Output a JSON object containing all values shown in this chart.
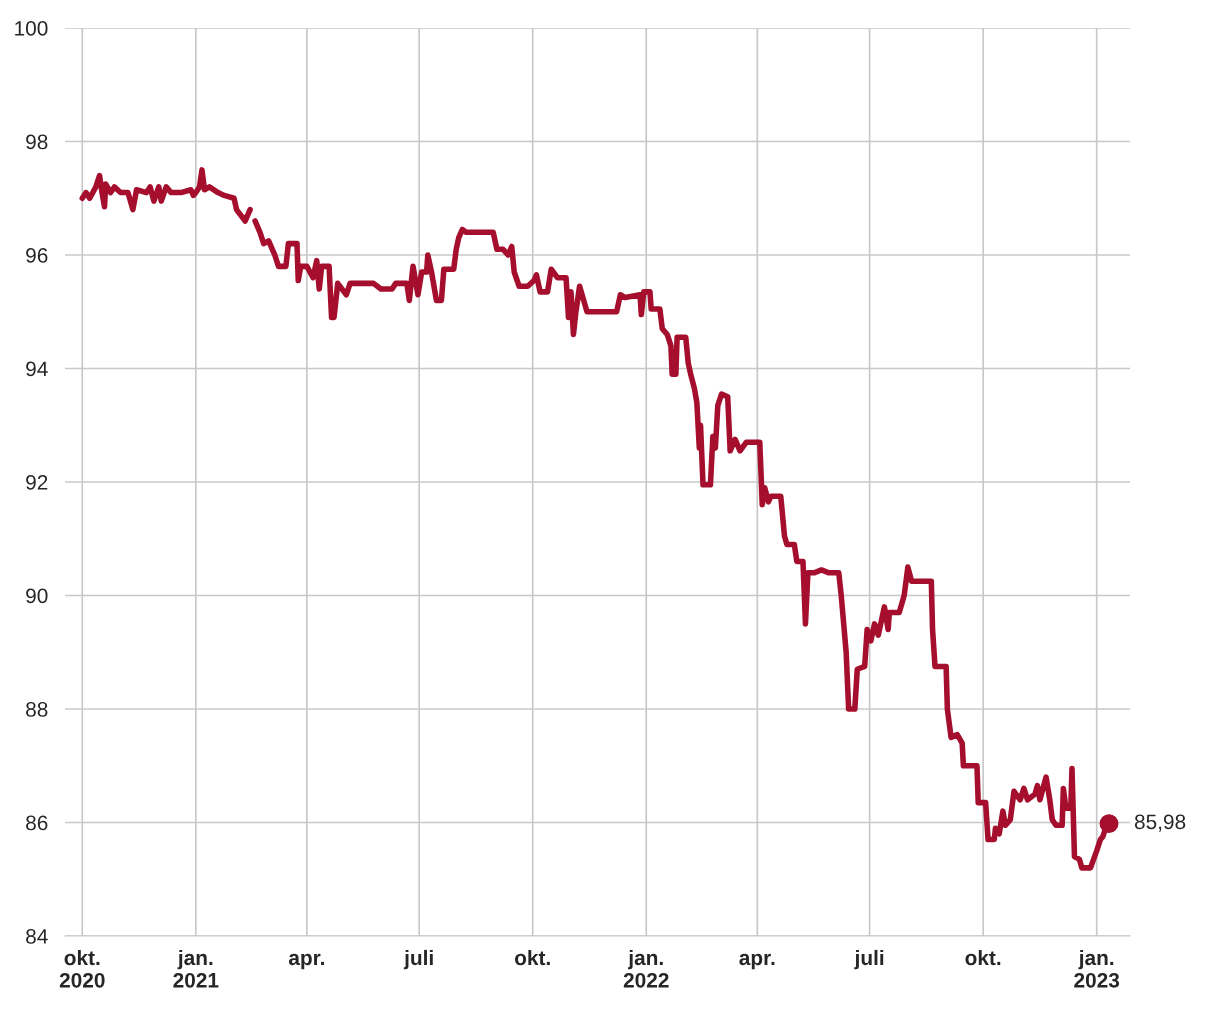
{
  "chart_data": {
    "type": "line",
    "x": [
      "2020-10-01",
      "2020-10-04",
      "2020-10-07",
      "2020-10-12",
      "2020-10-15",
      "2020-10-17",
      "2020-10-19",
      "2020-10-20",
      "2020-10-24",
      "2020-10-27",
      "2020-11-01",
      "2020-11-07",
      "2020-11-11",
      "2020-11-14",
      "2020-11-22",
      "2020-11-25",
      "2020-11-28",
      "2020-12-02",
      "2020-12-04",
      "2020-12-08",
      "2020-12-12",
      "2020-12-20",
      "2020-12-28",
      "2020-12-30",
      "2021-01-01",
      "2021-01-04",
      "2021-01-06",
      "2021-01-08",
      "2021-01-12",
      "2021-01-19",
      "2021-01-24",
      "2021-02-01",
      "2021-02-03",
      "2021-02-10",
      "2021-02-14",
      "2021-02-16",
      "2021-02-18",
      "2021-02-22",
      "2021-02-25",
      "2021-03-01",
      "2021-03-06",
      "2021-03-09",
      "2021-03-15",
      "2021-03-17",
      "2021-03-24",
      "2021-03-25",
      "2021-03-27",
      "2021-04-01",
      "2021-04-06",
      "2021-04-09",
      "2021-04-11",
      "2021-04-13",
      "2021-04-19",
      "2021-04-21",
      "2021-04-23",
      "2021-04-26",
      "2021-05-03",
      "2021-05-06",
      "2021-05-25",
      "2021-05-31",
      "2021-06-09",
      "2021-06-12",
      "2021-06-21",
      "2021-06-23",
      "2021-06-26",
      "2021-06-30",
      "2021-07-03",
      "2021-07-07",
      "2021-07-08",
      "2021-07-11",
      "2021-07-15",
      "2021-07-19",
      "2021-07-21",
      "2021-07-29",
      "2021-07-31",
      "2021-08-02",
      "2021-08-05",
      "2021-08-08",
      "2021-08-30",
      "2021-09-02",
      "2021-09-07",
      "2021-09-11",
      "2021-09-14",
      "2021-09-16",
      "2021-09-20",
      "2021-09-27",
      "2021-10-02",
      "2021-10-04",
      "2021-10-07",
      "2021-10-13",
      "2021-10-16",
      "2021-10-21",
      "2021-10-28",
      "2021-10-30",
      "2021-11-01",
      "2021-11-03",
      "2021-11-05",
      "2021-11-08",
      "2021-11-14",
      "2021-12-08",
      "2021-12-11",
      "2021-12-15",
      "2021-12-27",
      "2021-12-28",
      "2021-12-30",
      "2022-01-04",
      "2022-01-05",
      "2022-01-12",
      "2022-01-14",
      "2022-01-18",
      "2022-01-21",
      "2022-01-22",
      "2022-01-25",
      "2022-01-26",
      "2022-02-02",
      "2022-02-04",
      "2022-02-06",
      "2022-02-09",
      "2022-02-11",
      "2022-02-13",
      "2022-02-14",
      "2022-02-16",
      "2022-02-22",
      "2022-02-24",
      "2022-02-26",
      "2022-02-28",
      "2022-03-03",
      "2022-03-08",
      "2022-03-10",
      "2022-03-14",
      "2022-03-18",
      "2022-03-23",
      "2022-04-03",
      "2022-04-05",
      "2022-04-07",
      "2022-04-10",
      "2022-04-12",
      "2022-04-20",
      "2022-04-23",
      "2022-04-25",
      "2022-05-01",
      "2022-05-03",
      "2022-05-08",
      "2022-05-10",
      "2022-05-12",
      "2022-05-17",
      "2022-05-23",
      "2022-05-29",
      "2022-06-06",
      "2022-06-08",
      "2022-06-12",
      "2022-06-14",
      "2022-06-19",
      "2022-06-21",
      "2022-06-27",
      "2022-06-29",
      "2022-07-02",
      "2022-07-05",
      "2022-07-08",
      "2022-07-11",
      "2022-07-13",
      "2022-07-16",
      "2022-07-17",
      "2022-07-25",
      "2022-07-29",
      "2022-08-01",
      "2022-08-04",
      "2022-08-20",
      "2022-08-21",
      "2022-08-23",
      "2022-09-01",
      "2022-09-02",
      "2022-09-05",
      "2022-09-10",
      "2022-09-14",
      "2022-09-15",
      "2022-09-26",
      "2022-09-27",
      "2022-10-03",
      "2022-10-05",
      "2022-10-10",
      "2022-10-11",
      "2022-10-14",
      "2022-10-17",
      "2022-10-19",
      "2022-10-23",
      "2022-10-26",
      "2022-10-31",
      "2022-11-03",
      "2022-11-06",
      "2022-11-12",
      "2022-11-14",
      "2022-11-16",
      "2022-11-21",
      "2022-11-24",
      "2022-11-26",
      "2022-11-29",
      "2022-12-04",
      "2022-12-05",
      "2022-12-07",
      "2022-12-11",
      "2022-12-12",
      "2022-12-14",
      "2022-12-18",
      "2022-12-20",
      "2022-12-27",
      "2023-01-01",
      "2023-01-04",
      "2023-01-06",
      "2023-01-09",
      "2023-01-11"
    ],
    "series": [
      {
        "color": "#a50f2d",
        "values": [
          97.0,
          97.1,
          97.0,
          97.2,
          97.4,
          97.1,
          96.85,
          97.25,
          97.1,
          97.2,
          97.1,
          97.1,
          96.8,
          97.15,
          97.1,
          97.2,
          96.95,
          97.2,
          96.95,
          97.2,
          97.1,
          97.1,
          97.15,
          97.05,
          97.1,
          97.2,
          97.5,
          97.15,
          97.2,
          97.1,
          97.05,
          97.0,
          96.8,
          96.6,
          96.8,
          null,
          96.6,
          96.4,
          96.2,
          96.25,
          96.0,
          95.8,
          95.8,
          96.2,
          96.2,
          95.55,
          95.8,
          95.8,
          95.6,
          95.9,
          95.4,
          95.8,
          95.8,
          94.9,
          94.9,
          95.5,
          95.3,
          95.5,
          95.5,
          95.4,
          95.4,
          95.5,
          95.5,
          95.2,
          95.8,
          95.3,
          95.7,
          95.7,
          96.0,
          95.7,
          95.2,
          95.2,
          95.75,
          95.75,
          96.1,
          96.3,
          96.45,
          96.4,
          96.4,
          96.1,
          96.1,
          96.0,
          96.15,
          95.7,
          95.45,
          95.45,
          95.55,
          95.65,
          95.35,
          95.35,
          95.75,
          95.6,
          95.6,
          94.9,
          95.35,
          94.6,
          95.0,
          95.45,
          95.0,
          95.0,
          95.3,
          95.25,
          95.3,
          94.95,
          95.35,
          95.35,
          95.05,
          95.05,
          94.7,
          94.6,
          94.4,
          93.9,
          93.9,
          94.55,
          94.55,
          94.1,
          93.9,
          93.65,
          93.4,
          92.6,
          93.0,
          91.95,
          91.95,
          92.8,
          92.6,
          93.35,
          93.55,
          93.5,
          92.55,
          92.75,
          92.55,
          92.7,
          92.7,
          91.6,
          91.9,
          91.65,
          91.75,
          91.75,
          91.05,
          90.9,
          90.9,
          90.6,
          90.6,
          89.5,
          90.4,
          90.4,
          90.45,
          90.4,
          90.4,
          90.0,
          89.0,
          88.0,
          88.0,
          88.7,
          88.75,
          89.4,
          89.2,
          89.5,
          89.3,
          89.6,
          89.8,
          89.4,
          89.7,
          89.7,
          90.0,
          90.5,
          90.25,
          90.25,
          89.4,
          88.75,
          88.75,
          88.0,
          87.5,
          87.55,
          87.4,
          87.0,
          87.0,
          86.35,
          86.35,
          85.7,
          85.7,
          85.9,
          85.8,
          86.2,
          85.95,
          86.05,
          86.55,
          86.4,
          86.6,
          86.4,
          86.5,
          86.65,
          86.4,
          86.8,
          86.4,
          86.05,
          85.95,
          85.95,
          86.6,
          86.25,
          86.25,
          86.95,
          85.4,
          85.35,
          85.2,
          85.2,
          85.5,
          85.7,
          85.75,
          85.95,
          85.98
        ]
      },
      {
        "type": "scatter",
        "color": "#a50f2d",
        "marker": "circle",
        "x": [
          "2023-01-11"
        ],
        "values": [
          85.98
        ]
      }
    ],
    "annotations": [
      {
        "text": "85,98",
        "x": "2023-01-11",
        "y": 85.98
      }
    ],
    "xlim": [
      "2020-09-17",
      "2023-01-28"
    ],
    "xticks": [
      {
        "value": "2020-10-01",
        "label": "okt.\n2020"
      },
      {
        "value": "2021-01-01",
        "label": "jan.\n2021"
      },
      {
        "value": "2021-04-01",
        "label": "apr."
      },
      {
        "value": "2021-07-01",
        "label": "juli"
      },
      {
        "value": "2021-10-01",
        "label": "okt."
      },
      {
        "value": "2022-01-01",
        "label": "jan.\n2022"
      },
      {
        "value": "2022-04-01",
        "label": "apr."
      },
      {
        "value": "2022-07-01",
        "label": "juli"
      },
      {
        "value": "2022-10-01",
        "label": "okt."
      },
      {
        "value": "2023-01-01",
        "label": "jan.\n2023"
      }
    ],
    "ylim": [
      84,
      100
    ],
    "yticks": [
      84,
      86,
      88,
      90,
      92,
      94,
      96,
      98,
      100
    ],
    "grid": true,
    "line_style": "solid"
  }
}
